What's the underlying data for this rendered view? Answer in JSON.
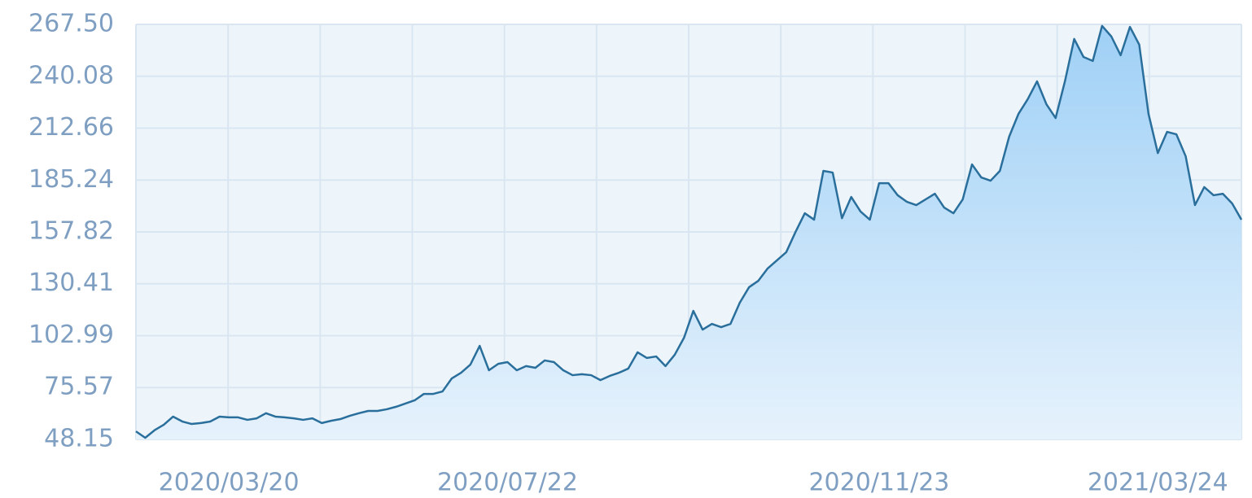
{
  "chart_data": {
    "type": "area",
    "categories": [
      null,
      null,
      null,
      null,
      null,
      null,
      null,
      null,
      null,
      null,
      "2020/03/20",
      null,
      null,
      null,
      null,
      null,
      null,
      null,
      null,
      null,
      null,
      null,
      null,
      null,
      null,
      null,
      null,
      null,
      null,
      null,
      null,
      null,
      null,
      null,
      null,
      null,
      null,
      null,
      null,
      null,
      "2020/07/22",
      null,
      null,
      null,
      null,
      null,
      null,
      null,
      null,
      null,
      null,
      null,
      null,
      null,
      null,
      null,
      null,
      null,
      null,
      null,
      null,
      null,
      null,
      null,
      null,
      null,
      null,
      null,
      null,
      null,
      null,
      null,
      null,
      null,
      null,
      null,
      null,
      null,
      null,
      null,
      "2020/11/23",
      null,
      null,
      null,
      null,
      null,
      null,
      null,
      null,
      null,
      null,
      null,
      null,
      null,
      null,
      null,
      null,
      null,
      null,
      null,
      null,
      null,
      null,
      null,
      null,
      null,
      null,
      null,
      null,
      null,
      "2021/03/24",
      null,
      null,
      null,
      null,
      null,
      null,
      null,
      null,
      null
    ],
    "values": [
      52.4,
      49,
      53,
      55.9,
      60.2,
      57.6,
      56.3,
      56.8,
      57.6,
      60.2,
      59.8,
      59.8,
      58.5,
      59.3,
      62,
      60.2,
      59.8,
      59.3,
      58.5,
      59.3,
      56.8,
      58,
      58.9,
      60.6,
      62,
      63.2,
      63.2,
      64.1,
      65.4,
      67.1,
      68.8,
      72.2,
      72.2,
      73.5,
      80.4,
      83.4,
      87.7,
      97.6,
      84.7,
      88.1,
      89,
      84.7,
      86.9,
      86,
      89.9,
      89,
      84.7,
      82.1,
      82.6,
      82.1,
      79.5,
      81.7,
      83.4,
      85.6,
      94.2,
      91.2,
      92,
      86.9,
      92.9,
      101.9,
      116.1,
      106.2,
      109.2,
      107.5,
      109.2,
      120.4,
      128.6,
      132,
      138.5,
      142.8,
      147.1,
      157.8,
      167.7,
      164.3,
      190.1,
      189.2,
      165.1,
      176.3,
      168.6,
      164.3,
      183.6,
      183.6,
      177.2,
      173.7,
      172,
      175,
      178,
      170.7,
      167.7,
      175,
      193.5,
      186.6,
      184.9,
      190.1,
      208.2,
      220.2,
      228,
      237.4,
      225.4,
      218,
      237.4,
      259.8,
      250.3,
      248.2,
      266.7,
      261.1,
      251.2,
      266.2,
      256.8,
      220.2,
      199.5,
      210.7,
      209.4,
      197.8,
      172,
      181.5,
      177.2,
      178,
      172.9,
      164.3
    ],
    "color": "#2a6f9c",
    "ylim": [
      48.15,
      267.5
    ],
    "yticks": [
      48.15,
      75.57,
      102.99,
      130.41,
      157.82,
      185.24,
      212.66,
      240.08,
      {
        "value": 267.5,
        "label": "267.50"
      }
    ],
    "grid": true
  }
}
